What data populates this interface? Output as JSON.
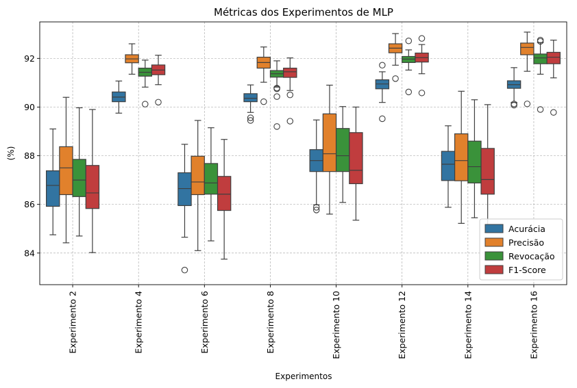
{
  "chart_data": {
    "type": "box",
    "title": "Métricas dos Experimentos de MLP",
    "xlabel": "Experimentos",
    "ylabel": "(%)",
    "ylim": [
      82.7,
      93.5
    ],
    "yticks": [
      84,
      86,
      88,
      90,
      92
    ],
    "grid": true,
    "legend_position": "lower-right",
    "categories": [
      "Experimento 2",
      "Experimento 4",
      "Experimento 6",
      "Experimento 8",
      "Experimento 10",
      "Experimento 12",
      "Experimento 14",
      "Experimento 16"
    ],
    "series": [
      {
        "name": "Acurácia",
        "color": "#3274a1",
        "boxes": [
          {
            "whislo": 84.75,
            "q1": 85.92,
            "med": 86.78,
            "q3": 87.38,
            "whishi": 89.1,
            "fliers": []
          },
          {
            "whislo": 89.75,
            "q1": 90.22,
            "med": 90.41,
            "q3": 90.62,
            "whishi": 91.07,
            "fliers": []
          },
          {
            "whislo": 84.65,
            "q1": 85.95,
            "med": 86.65,
            "q3": 87.3,
            "whishi": 88.47,
            "fliers": [
              83.3
            ]
          },
          {
            "whislo": 89.78,
            "q1": 90.22,
            "med": 90.36,
            "q3": 90.55,
            "whishi": 90.91,
            "fliers": [
              89.56,
              89.45
            ]
          },
          {
            "whislo": 85.98,
            "q1": 87.35,
            "med": 87.8,
            "q3": 88.25,
            "whishi": 89.47,
            "fliers": [
              85.88,
              85.77
            ]
          },
          {
            "whislo": 90.19,
            "q1": 90.75,
            "med": 90.95,
            "q3": 91.12,
            "whishi": 91.45,
            "fliers": [
              91.72,
              89.52
            ]
          },
          {
            "whislo": 85.88,
            "q1": 86.98,
            "med": 87.65,
            "q3": 88.18,
            "whishi": 89.23,
            "fliers": []
          },
          {
            "whislo": 90.19,
            "q1": 90.77,
            "med": 90.92,
            "q3": 91.08,
            "whishi": 91.62,
            "fliers": [
              90.13,
              90.08
            ]
          }
        ]
      },
      {
        "name": "Precisão",
        "color": "#e1812c",
        "boxes": [
          {
            "whislo": 84.42,
            "q1": 86.4,
            "med": 87.5,
            "q3": 88.37,
            "whishi": 90.4,
            "fliers": []
          },
          {
            "whislo": 91.35,
            "q1": 91.82,
            "med": 91.98,
            "q3": 92.15,
            "whishi": 92.6,
            "fliers": []
          },
          {
            "whislo": 84.1,
            "q1": 86.4,
            "med": 86.92,
            "q3": 87.98,
            "whishi": 89.45,
            "fliers": []
          },
          {
            "whislo": 91.02,
            "q1": 91.6,
            "med": 91.83,
            "q3": 92.05,
            "whishi": 92.47,
            "fliers": [
              90.22
            ]
          },
          {
            "whislo": 85.6,
            "q1": 87.35,
            "med": 88.08,
            "q3": 89.72,
            "whishi": 90.9,
            "fliers": []
          },
          {
            "whislo": 91.72,
            "q1": 92.23,
            "med": 92.42,
            "q3": 92.6,
            "whishi": 93.02,
            "fliers": [
              91.17
            ]
          },
          {
            "whislo": 85.22,
            "q1": 86.97,
            "med": 87.8,
            "q3": 88.9,
            "whishi": 90.65,
            "fliers": []
          },
          {
            "whislo": 91.47,
            "q1": 92.15,
            "med": 92.45,
            "q3": 92.63,
            "whishi": 93.08,
            "fliers": [
              90.13
            ]
          }
        ]
      },
      {
        "name": "Revocação",
        "color": "#3a923a",
        "boxes": [
          {
            "whislo": 84.7,
            "q1": 86.32,
            "med": 87.0,
            "q3": 87.85,
            "whishi": 89.97,
            "fliers": []
          },
          {
            "whislo": 90.82,
            "q1": 91.27,
            "med": 91.43,
            "q3": 91.6,
            "whishi": 91.93,
            "fliers": [
              90.12
            ]
          },
          {
            "whislo": 84.5,
            "q1": 86.42,
            "med": 86.88,
            "q3": 87.68,
            "whishi": 89.15,
            "fliers": []
          },
          {
            "whislo": 90.82,
            "q1": 91.23,
            "med": 91.37,
            "q3": 91.5,
            "whishi": 91.9,
            "fliers": [
              90.78,
              90.75,
              90.43,
              89.2
            ]
          },
          {
            "whislo": 86.08,
            "q1": 87.35,
            "med": 88.0,
            "q3": 89.12,
            "whishi": 90.02,
            "fliers": []
          },
          {
            "whislo": 91.52,
            "q1": 91.83,
            "med": 91.97,
            "q3": 92.08,
            "whishi": 92.35,
            "fliers": [
              92.72,
              90.62
            ]
          },
          {
            "whislo": 85.45,
            "q1": 86.88,
            "med": 87.55,
            "q3": 88.6,
            "whishi": 90.3,
            "fliers": []
          },
          {
            "whislo": 91.35,
            "q1": 91.78,
            "med": 92.02,
            "q3": 92.18,
            "whishi": 92.65,
            "fliers": [
              92.75,
              92.7,
              89.9
            ]
          }
        ]
      },
      {
        "name": "F1-Score",
        "color": "#c03d3e",
        "boxes": [
          {
            "whislo": 84.02,
            "q1": 85.83,
            "med": 86.47,
            "q3": 87.6,
            "whishi": 89.9,
            "fliers": []
          },
          {
            "whislo": 90.92,
            "q1": 91.33,
            "med": 91.52,
            "q3": 91.73,
            "whishi": 92.13,
            "fliers": [
              90.2
            ]
          },
          {
            "whislo": 83.75,
            "q1": 85.75,
            "med": 86.42,
            "q3": 87.15,
            "whishi": 88.67,
            "fliers": []
          },
          {
            "whislo": 90.68,
            "q1": 91.22,
            "med": 91.45,
            "q3": 91.6,
            "whishi": 92.02,
            "fliers": [
              90.5,
              89.42
            ]
          },
          {
            "whislo": 85.35,
            "q1": 86.85,
            "med": 87.4,
            "q3": 88.95,
            "whishi": 90.0,
            "fliers": []
          },
          {
            "whislo": 91.37,
            "q1": 91.85,
            "med": 92.03,
            "q3": 92.22,
            "whishi": 92.57,
            "fliers": [
              92.82,
              90.58
            ]
          },
          {
            "whislo": 84.85,
            "q1": 86.42,
            "med": 87.02,
            "q3": 88.3,
            "whishi": 90.1,
            "fliers": []
          },
          {
            "whislo": 91.2,
            "q1": 91.78,
            "med": 92.05,
            "q3": 92.25,
            "whishi": 92.75,
            "fliers": [
              89.78
            ]
          }
        ]
      }
    ]
  }
}
